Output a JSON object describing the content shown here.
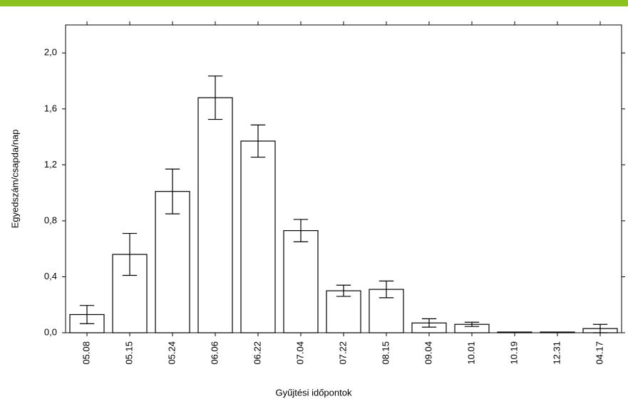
{
  "chart_data": {
    "type": "bar",
    "x_label": "Gyűjtési időpontok",
    "y_label": "Egyedszám/csapda/nap",
    "categories": [
      "05.08",
      "05.15",
      "05.24",
      "06.06",
      "06.22",
      "07.04",
      "07.22",
      "08.15",
      "09.04",
      "10.01",
      "10.19",
      "12.31",
      "04.17"
    ],
    "values": [
      0.13,
      0.56,
      1.01,
      1.68,
      1.37,
      0.73,
      0.3,
      0.31,
      0.07,
      0.06,
      0.005,
      0.005,
      0.03
    ],
    "errors": [
      0.065,
      0.15,
      0.16,
      0.155,
      0.115,
      0.08,
      0.04,
      0.06,
      0.03,
      0.015,
      0,
      0,
      0.03
    ],
    "color": "#ffffff",
    "ylim": [
      0,
      2.2
    ],
    "yticks": [
      {
        "value": 0,
        "label": "0,0"
      },
      {
        "value": 0.4,
        "label": "0,4"
      },
      {
        "value": 0.8,
        "label": "0,8"
      },
      {
        "value": 1.2,
        "label": "1,2"
      },
      {
        "value": 1.6,
        "label": "1,6"
      },
      {
        "value": 2.0,
        "label": "2,0"
      }
    ],
    "grid": false
  }
}
